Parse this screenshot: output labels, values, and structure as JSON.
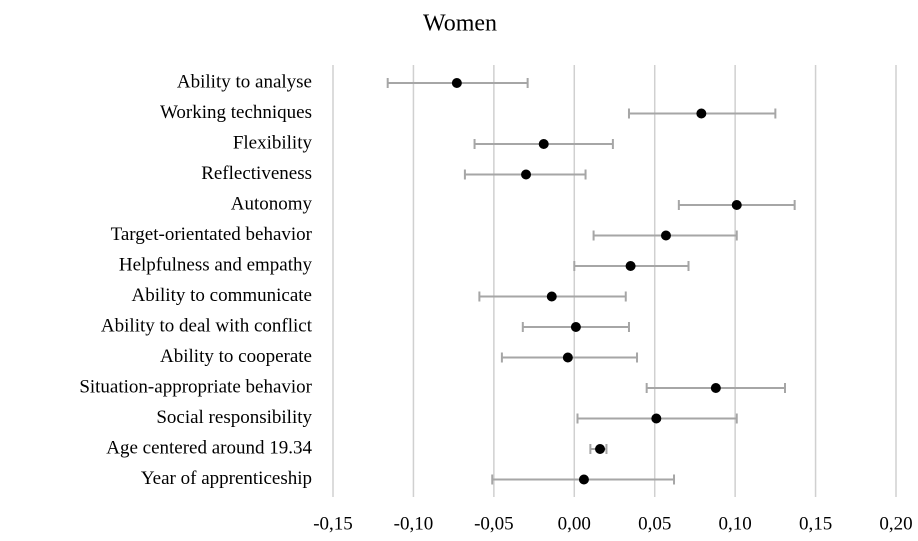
{
  "chart_data": {
    "type": "errorbar",
    "title": "Women",
    "categories": [
      "Ability to analyse",
      "Working techniques",
      "Flexibility",
      "Reflectiveness",
      "Autonomy",
      "Target-orientated behavior",
      "Helpfulness and empathy",
      "Ability to communicate",
      "Ability to deal with conflict",
      "Ability to cooperate",
      "Situation-appropriate behavior",
      "Social responsibility",
      "Age centered around 19.34",
      "Year of apprenticeship"
    ],
    "values": [
      -0.073,
      0.079,
      -0.019,
      -0.03,
      0.101,
      0.057,
      0.035,
      -0.014,
      0.001,
      -0.004,
      0.088,
      0.051,
      0.016,
      0.006
    ],
    "lower": [
      -0.116,
      0.034,
      -0.062,
      -0.068,
      0.065,
      0.012,
      0.0,
      -0.059,
      -0.032,
      -0.045,
      0.045,
      0.002,
      0.01,
      -0.051
    ],
    "upper": [
      -0.029,
      0.125,
      0.024,
      0.007,
      0.137,
      0.101,
      0.071,
      0.032,
      0.034,
      0.039,
      0.131,
      0.101,
      0.02,
      0.062
    ],
    "color": "#000000",
    "error_color": "#a6a6a6",
    "xlim": [
      -0.15,
      0.2
    ],
    "xticks": [
      {
        "value": -0.15,
        "label": "-0,15"
      },
      {
        "value": -0.1,
        "label": "-0,10"
      },
      {
        "value": -0.05,
        "label": "-0,05"
      },
      {
        "value": 0,
        "label": "0,00"
      },
      {
        "value": 0.05,
        "label": "0,05"
      },
      {
        "value": 0.1,
        "label": "0,10"
      },
      {
        "value": 0.15,
        "label": "0,15"
      },
      {
        "value": 0.2,
        "label": "0,20"
      }
    ],
    "grid": true
  }
}
